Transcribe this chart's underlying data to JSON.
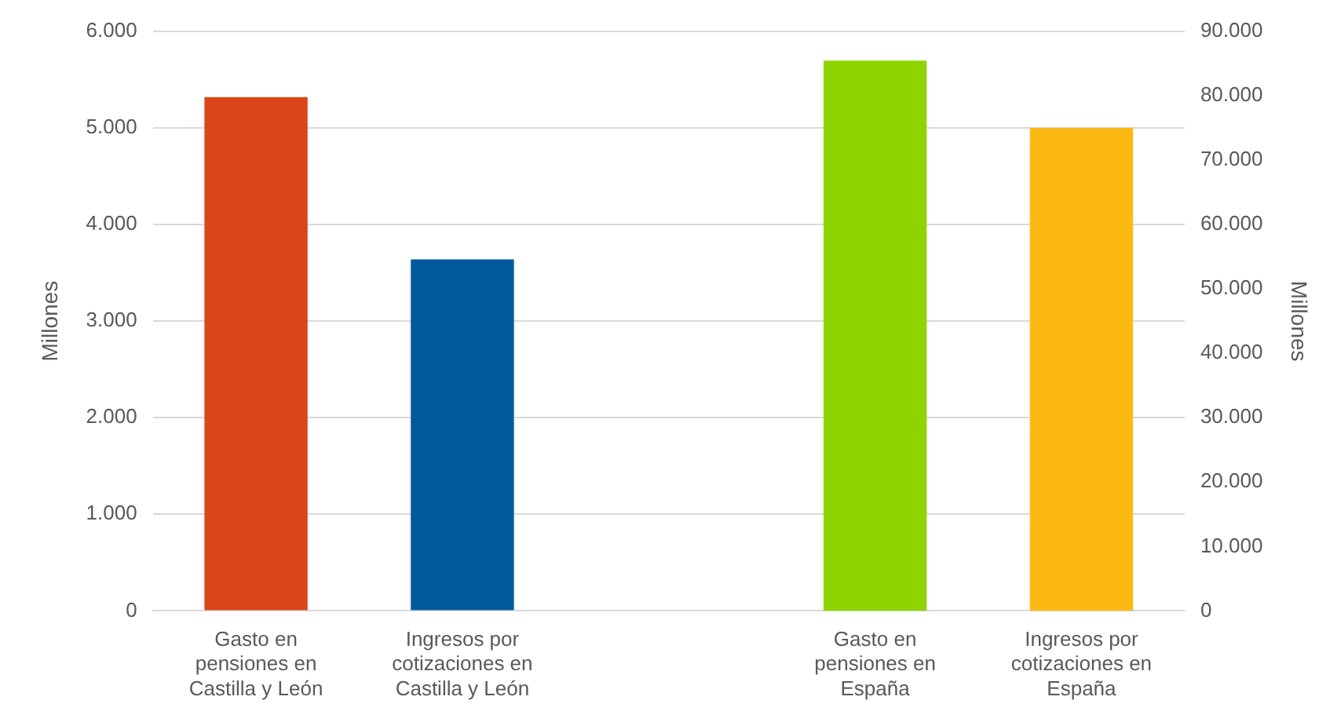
{
  "chart_data": {
    "type": "bar",
    "categories": [
      "Gasto en pensiones en Castilla y León",
      "Ingresos por cotizaciones en Castilla y León",
      null,
      "Gasto en pensiones en España",
      "Ingresos por cotizaciones en España"
    ],
    "series": [
      {
        "colors": [
          "#d9461a",
          "#005a9c",
          null,
          null,
          null
        ],
        "values": [
          5320,
          3640,
          null,
          null,
          null
        ]
      },
      {
        "axis": "y2",
        "colors": [
          null,
          null,
          null,
          "#8fd400",
          "#fdb913"
        ],
        "values": [
          null,
          null,
          null,
          85450,
          75000
        ]
      }
    ],
    "ylabel": "Millones",
    "y2label": "Millones",
    "ylim": [
      0,
      6000
    ],
    "yticks": [
      0,
      {
        "value": 1000,
        "label": "1.000"
      },
      {
        "value": 2000,
        "label": "2.000"
      },
      {
        "value": 3000,
        "label": "3.000"
      },
      {
        "value": 4000,
        "label": "4.000"
      },
      {
        "value": 5000,
        "label": "5.000"
      },
      {
        "value": 6000,
        "label": "6.000"
      }
    ],
    "y2lim": [
      0,
      90000
    ],
    "y2ticks": [
      0,
      {
        "value": 10000,
        "label": "10.000"
      },
      {
        "value": 20000,
        "label": "20.000"
      },
      {
        "value": 30000,
        "label": "30.000"
      },
      {
        "value": 40000,
        "label": "40.000"
      },
      {
        "value": 50000,
        "label": "50.000"
      },
      {
        "value": 60000,
        "label": "60.000"
      },
      {
        "value": 70000,
        "label": "70.000"
      },
      {
        "value": 80000,
        "label": "80.000"
      },
      {
        "value": 90000,
        "label": "90.000"
      }
    ],
    "grid": "y"
  }
}
